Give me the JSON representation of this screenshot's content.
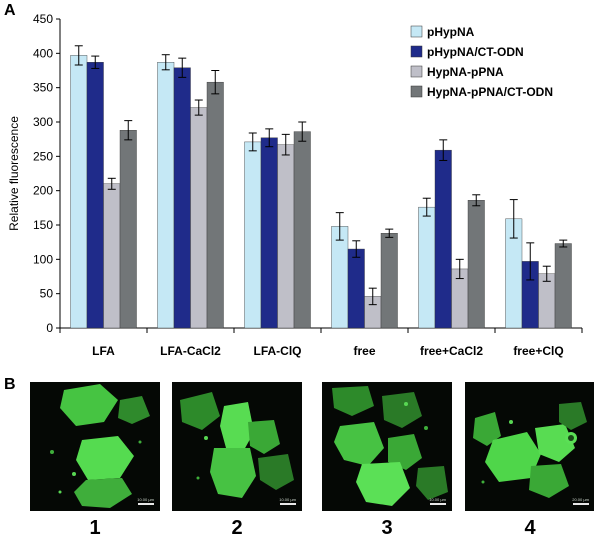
{
  "panels": {
    "a_label": "A",
    "b_label": "B"
  },
  "chart_data": {
    "type": "bar",
    "ylabel": "Relative fluorescence",
    "ylim": [
      0,
      450
    ],
    "yticks": [
      0,
      50,
      100,
      150,
      200,
      250,
      300,
      350,
      400,
      450
    ],
    "categories": [
      "LFA",
      "LFA-CaCl2",
      "LFA-ClQ",
      "free",
      "free+CaCl2",
      "free+ClQ"
    ],
    "legend_position": "top-right",
    "series": [
      {
        "name": "pHypNA",
        "color": "#c5e8f5",
        "values": [
          397,
          387,
          271,
          148,
          176,
          159
        ],
        "errors": [
          14,
          11,
          13,
          20,
          13,
          28
        ]
      },
      {
        "name": "pHypNA/CT-ODN",
        "color": "#1f2b8a",
        "values": [
          387,
          379,
          277,
          115,
          259,
          97
        ],
        "errors": [
          9,
          14,
          13,
          12,
          15,
          27
        ]
      },
      {
        "name": "HypNA-pPNA",
        "color": "#bfbfc8",
        "values": [
          210,
          321,
          267,
          46,
          86,
          79
        ],
        "errors": [
          8,
          11,
          15,
          12,
          14,
          11
        ]
      },
      {
        "name": "HypNA-pPNA/CT-ODN",
        "color": "#727678",
        "values": [
          288,
          358,
          286,
          138,
          186,
          123
        ],
        "errors": [
          14,
          17,
          14,
          6,
          8,
          5
        ]
      }
    ]
  },
  "micrographs": [
    {
      "label": "1",
      "scale_text": "10.00 µm"
    },
    {
      "label": "2",
      "scale_text": "10.00 µm"
    },
    {
      "label": "3",
      "scale_text": "10.00 µm"
    },
    {
      "label": "4",
      "scale_text": "20.00 µm"
    }
  ],
  "colors": {
    "cell_fill": "#4fd64a",
    "cell_dim": "#2f7a2c",
    "background": "#050805"
  }
}
